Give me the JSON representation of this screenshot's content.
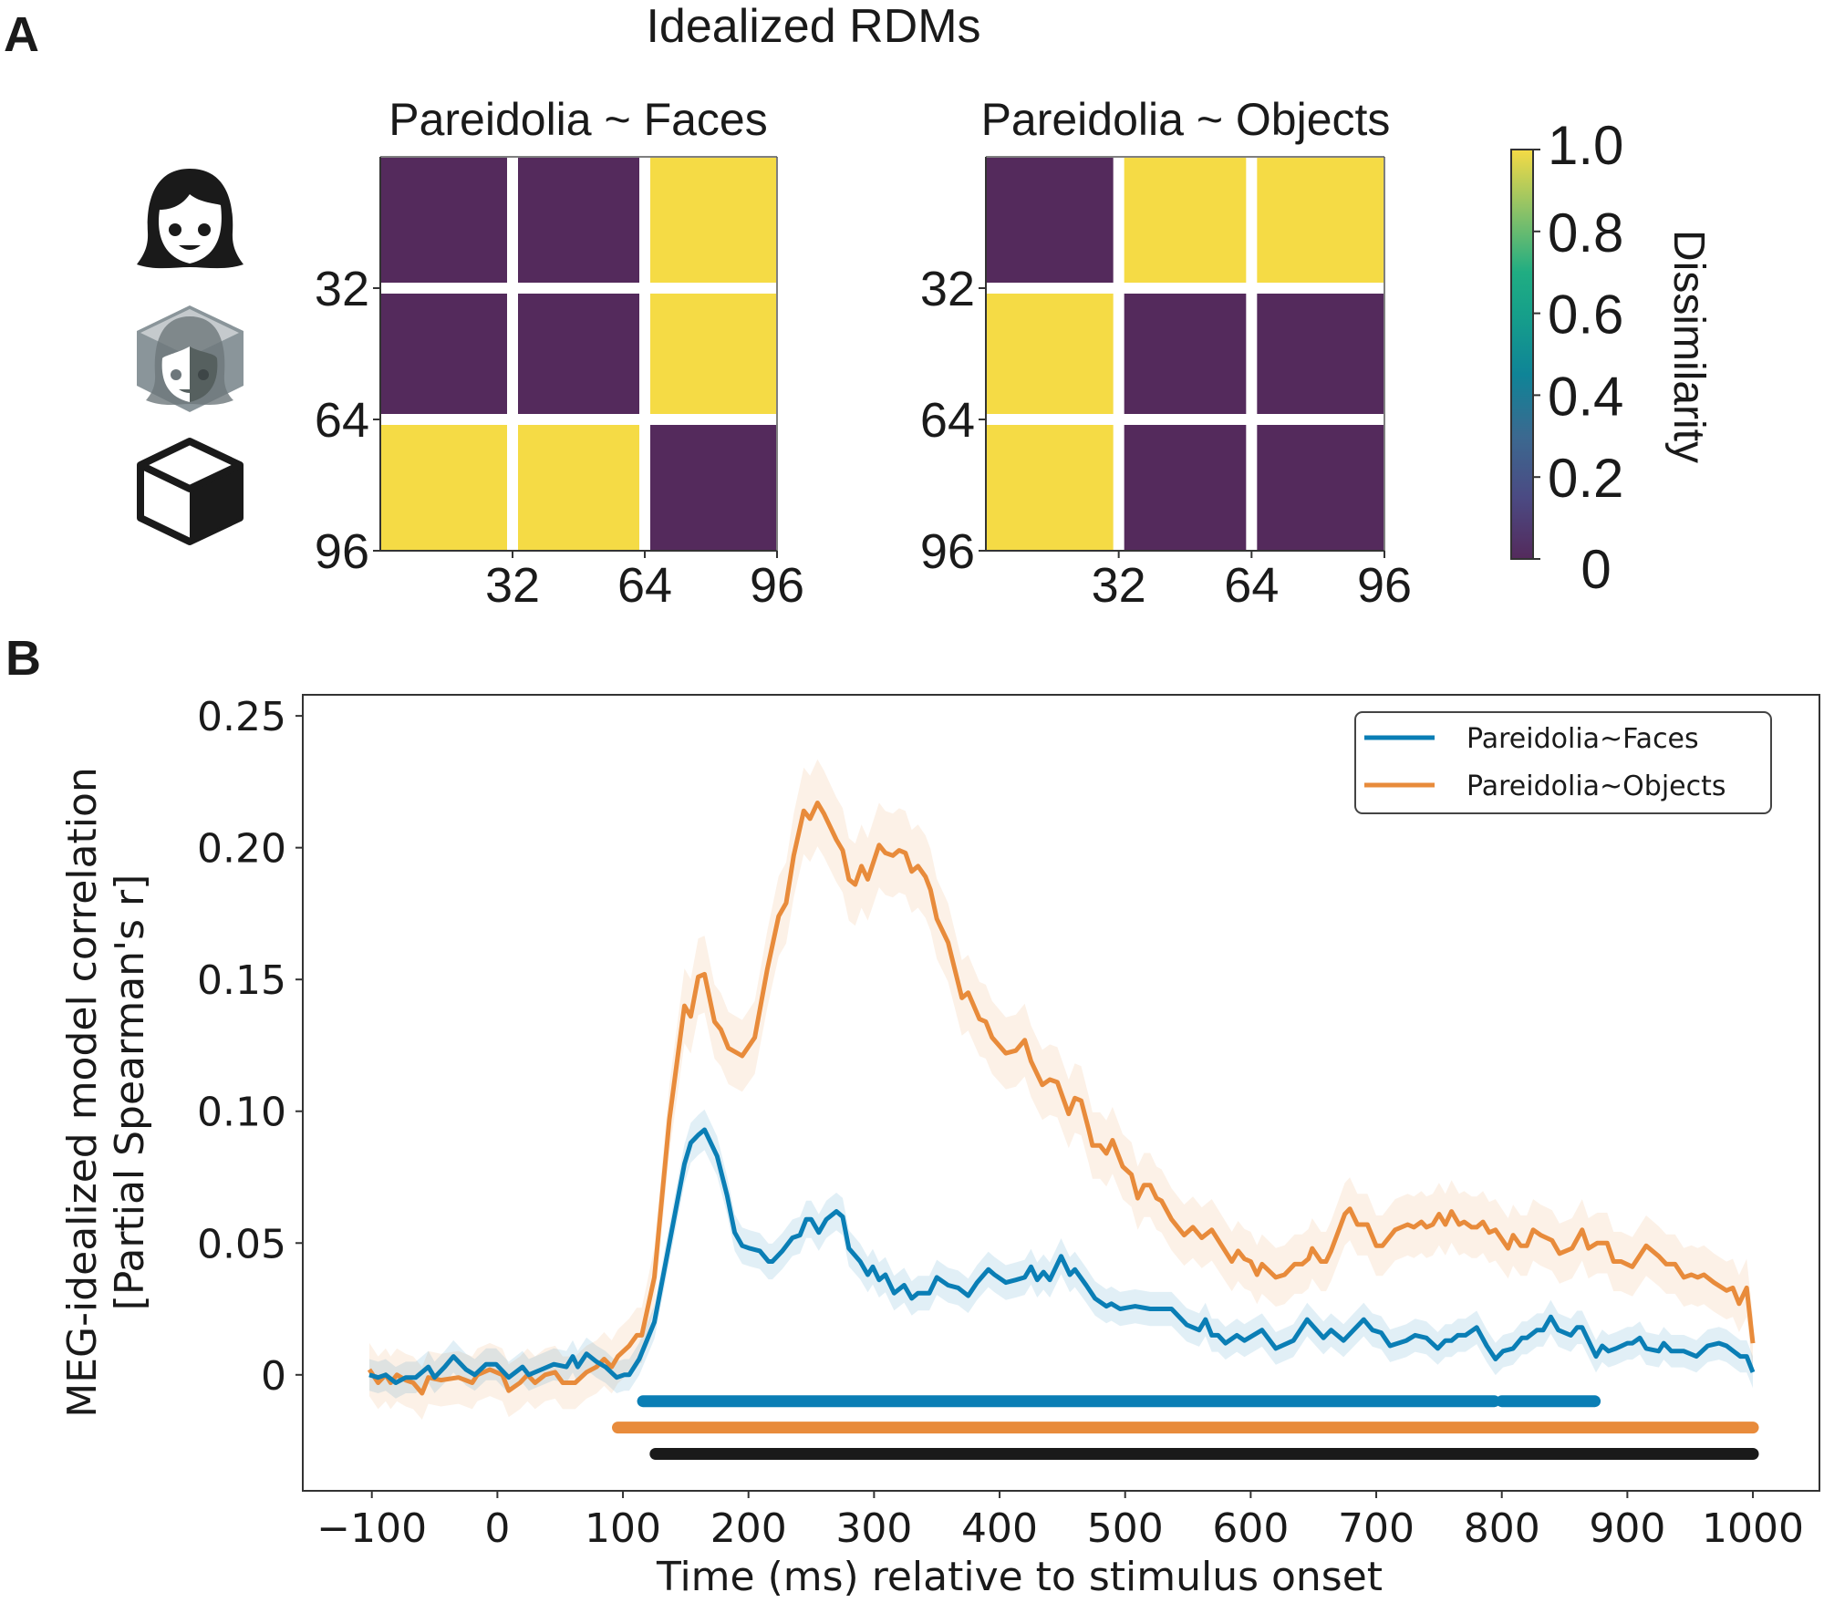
{
  "panel_a": {
    "label": "A",
    "title": "Idealized RDMs",
    "row_icons": [
      "face-icon",
      "pareidolia-icon",
      "object-icon"
    ],
    "colorbar": {
      "label": "Dissimilarity",
      "ticks": [
        "0",
        "0.2",
        "0.4",
        "0.6",
        "0.8",
        "1.0"
      ],
      "colormap": "viridis",
      "colors": {
        "low": "#542a5c",
        "high": "#f5db45"
      }
    }
  },
  "panel_b": {
    "label": "B"
  },
  "chart_data": [
    {
      "type": "heatmap",
      "title": "Pareidolia ~ Faces",
      "ticks": [
        "32",
        "64",
        "96"
      ],
      "range": [
        0,
        96
      ],
      "block_order": [
        "Faces",
        "Pareidolia",
        "Objects"
      ],
      "matrix": [
        [
          0,
          0,
          1
        ],
        [
          0,
          0,
          1
        ],
        [
          1,
          1,
          0
        ]
      ],
      "colorbar_range": [
        0,
        1
      ]
    },
    {
      "type": "heatmap",
      "title": "Pareidolia ~ Objects",
      "ticks": [
        "32",
        "64",
        "96"
      ],
      "range": [
        0,
        96
      ],
      "block_order": [
        "Faces",
        "Pareidolia",
        "Objects"
      ],
      "matrix": [
        [
          0,
          1,
          1
        ],
        [
          1,
          0,
          0
        ],
        [
          1,
          0,
          0
        ]
      ],
      "colorbar_range": [
        0,
        1
      ]
    },
    {
      "type": "line",
      "title": "",
      "xlabel": "Time (ms) relative to stimulus onset",
      "ylabel": "MEG-idealized model correlation\n[Partial Spearman's r]",
      "xlim": [
        -155,
        1053
      ],
      "ylim": [
        -0.044,
        0.258
      ],
      "xticks": [
        -100,
        0,
        100,
        200,
        300,
        400,
        500,
        600,
        700,
        800,
        900,
        1000
      ],
      "xtick_labels": [
        "−100",
        "0",
        "100",
        "200",
        "300",
        "400",
        "500",
        "600",
        "700",
        "800",
        "900",
        "1000"
      ],
      "yticks": [
        0,
        0.05,
        0.1,
        0.15,
        0.2,
        0.25
      ],
      "ytick_labels": [
        "0",
        "0.05",
        "0.10",
        "0.15",
        "0.20",
        "0.25"
      ],
      "grid": false,
      "legend_position": "top-right",
      "series": [
        {
          "name": "Pareidolia~Faces",
          "color": "#0a7eb5",
          "band_color": "#0a7eb5",
          "band_halfwidth": 0.006,
          "x": [
            -102,
            -95,
            -89,
            -81,
            -73,
            -65,
            -55,
            -50,
            -42,
            -35,
            -25,
            -18,
            -9,
            -1,
            9,
            20,
            25,
            35,
            45,
            55,
            60,
            64,
            71,
            79,
            86,
            95,
            101,
            105,
            113,
            125,
            137,
            149,
            154,
            160,
            165,
            175,
            183,
            189,
            195,
            201,
            209,
            216,
            219,
            227,
            235,
            241,
            246,
            250,
            256,
            262,
            270,
            275,
            280,
            289,
            295,
            299,
            304,
            309,
            316,
            324,
            330,
            335,
            344,
            350,
            359,
            367,
            375,
            382,
            391,
            396,
            405,
            413,
            420,
            425,
            430,
            435,
            440,
            449,
            456,
            460,
            469,
            476,
            485,
            489,
            496,
            508,
            520,
            537,
            549,
            559,
            564,
            569,
            574,
            580,
            589,
            595,
            609,
            620,
            634,
            645,
            658,
            664,
            674,
            690,
            697,
            704,
            711,
            724,
            731,
            740,
            749,
            755,
            760,
            765,
            771,
            780,
            788,
            795,
            801,
            809,
            816,
            820,
            828,
            833,
            839,
            845,
            855,
            860,
            864,
            875,
            880,
            885,
            891,
            900,
            904,
            910,
            915,
            925,
            929,
            935,
            945,
            955,
            964,
            973,
            979,
            990,
            995,
            1000
          ],
          "y": [
            0.0,
            -0.001,
            0.0,
            -0.003,
            -0.001,
            -0.001,
            0.003,
            -0.001,
            0.003,
            0.007,
            0.002,
            0.0,
            0.004,
            0.004,
            -0.001,
            0.003,
            0.0,
            0.002,
            0.004,
            0.003,
            0.007,
            0.003,
            0.008,
            0.005,
            0.003,
            -0.001,
            0.0,
            0.0,
            0.006,
            0.02,
            0.05,
            0.08,
            0.088,
            0.091,
            0.093,
            0.083,
            0.068,
            0.054,
            0.049,
            0.048,
            0.047,
            0.043,
            0.043,
            0.047,
            0.052,
            0.053,
            0.059,
            0.059,
            0.054,
            0.059,
            0.062,
            0.06,
            0.048,
            0.043,
            0.038,
            0.041,
            0.036,
            0.038,
            0.031,
            0.034,
            0.029,
            0.031,
            0.031,
            0.037,
            0.034,
            0.033,
            0.03,
            0.035,
            0.04,
            0.038,
            0.035,
            0.036,
            0.037,
            0.041,
            0.036,
            0.039,
            0.036,
            0.045,
            0.038,
            0.04,
            0.034,
            0.029,
            0.026,
            0.027,
            0.025,
            0.026,
            0.025,
            0.025,
            0.019,
            0.017,
            0.021,
            0.015,
            0.015,
            0.012,
            0.015,
            0.013,
            0.017,
            0.01,
            0.013,
            0.021,
            0.014,
            0.017,
            0.013,
            0.021,
            0.017,
            0.016,
            0.011,
            0.013,
            0.015,
            0.014,
            0.01,
            0.013,
            0.013,
            0.015,
            0.015,
            0.018,
            0.011,
            0.006,
            0.009,
            0.01,
            0.014,
            0.014,
            0.017,
            0.017,
            0.022,
            0.017,
            0.015,
            0.018,
            0.018,
            0.007,
            0.011,
            0.009,
            0.01,
            0.012,
            0.012,
            0.014,
            0.01,
            0.009,
            0.012,
            0.009,
            0.009,
            0.007,
            0.011,
            0.012,
            0.011,
            0.007,
            0.007,
            0.001
          ]
        },
        {
          "name": "Pareidolia~Objects",
          "color": "#e88b3b",
          "band_color": "#e88b3b",
          "band_halfwidth": 0.01,
          "x": [
            -102,
            -95,
            -89,
            -85,
            -80,
            -73,
            -67,
            -60,
            -55,
            -45,
            -31,
            -20,
            -16,
            -6,
            4,
            9,
            18,
            24,
            30,
            38,
            46,
            52,
            62,
            71,
            79,
            85,
            91,
            96,
            105,
            111,
            115,
            125,
            137,
            149,
            154,
            160,
            165,
            173,
            178,
            184,
            195,
            205,
            215,
            224,
            230,
            236,
            244,
            249,
            255,
            260,
            270,
            275,
            280,
            285,
            290,
            295,
            304,
            309,
            315,
            320,
            325,
            330,
            335,
            341,
            345,
            350,
            359,
            370,
            375,
            384,
            389,
            394,
            405,
            413,
            420,
            425,
            434,
            440,
            446,
            455,
            460,
            465,
            471,
            474,
            480,
            485,
            490,
            498,
            505,
            510,
            515,
            520,
            525,
            529,
            537,
            547,
            554,
            561,
            569,
            577,
            585,
            590,
            595,
            600,
            605,
            609,
            620,
            627,
            635,
            641,
            646,
            649,
            656,
            660,
            664,
            675,
            679,
            685,
            693,
            700,
            705,
            715,
            725,
            730,
            736,
            740,
            745,
            750,
            755,
            760,
            766,
            770,
            776,
            780,
            785,
            790,
            795,
            805,
            809,
            815,
            820,
            825,
            831,
            840,
            846,
            856,
            864,
            869,
            876,
            884,
            889,
            895,
            904,
            915,
            925,
            931,
            938,
            945,
            951,
            956,
            961,
            969,
            979,
            984,
            989,
            995,
            1000
          ],
          "y": [
            0.002,
            -0.003,
            0.0,
            -0.003,
            0.0,
            -0.002,
            -0.003,
            -0.007,
            -0.001,
            -0.002,
            -0.001,
            -0.003,
            0.0,
            0.002,
            0.0,
            -0.006,
            -0.003,
            0.0,
            -0.003,
            0.0,
            0.001,
            -0.003,
            -0.003,
            0.001,
            0.003,
            0.006,
            0.003,
            0.007,
            0.011,
            0.015,
            0.015,
            0.037,
            0.097,
            0.14,
            0.136,
            0.151,
            0.152,
            0.134,
            0.131,
            0.124,
            0.121,
            0.128,
            0.154,
            0.174,
            0.179,
            0.197,
            0.214,
            0.211,
            0.217,
            0.213,
            0.203,
            0.199,
            0.188,
            0.186,
            0.193,
            0.188,
            0.201,
            0.198,
            0.197,
            0.199,
            0.198,
            0.191,
            0.193,
            0.189,
            0.184,
            0.173,
            0.164,
            0.143,
            0.145,
            0.135,
            0.134,
            0.128,
            0.122,
            0.123,
            0.127,
            0.119,
            0.11,
            0.112,
            0.111,
            0.099,
            0.105,
            0.104,
            0.093,
            0.087,
            0.087,
            0.084,
            0.089,
            0.079,
            0.076,
            0.067,
            0.072,
            0.072,
            0.067,
            0.066,
            0.059,
            0.053,
            0.056,
            0.052,
            0.055,
            0.049,
            0.043,
            0.047,
            0.044,
            0.043,
            0.038,
            0.042,
            0.037,
            0.038,
            0.042,
            0.042,
            0.044,
            0.048,
            0.043,
            0.043,
            0.047,
            0.061,
            0.063,
            0.057,
            0.057,
            0.049,
            0.049,
            0.055,
            0.057,
            0.056,
            0.058,
            0.056,
            0.057,
            0.061,
            0.057,
            0.062,
            0.057,
            0.058,
            0.056,
            0.056,
            0.058,
            0.054,
            0.055,
            0.048,
            0.053,
            0.049,
            0.049,
            0.055,
            0.053,
            0.051,
            0.046,
            0.048,
            0.055,
            0.048,
            0.05,
            0.05,
            0.043,
            0.043,
            0.041,
            0.049,
            0.045,
            0.042,
            0.042,
            0.037,
            0.038,
            0.037,
            0.038,
            0.035,
            0.032,
            0.033,
            0.027,
            0.033,
            0.012
          ]
        }
      ],
      "significance_bars": [
        {
          "name": "Pareidolia~Faces significant",
          "color": "#0a7eb5",
          "y": -0.01,
          "segments": [
            [
              116,
              794
            ],
            [
              800,
              874
            ]
          ]
        },
        {
          "name": "Pareidolia~Objects significant",
          "color": "#e88b3b",
          "y": -0.02,
          "segments": [
            [
              96,
              1000
            ]
          ]
        },
        {
          "name": "Difference significant",
          "color": "#1a1a1a",
          "y": -0.03,
          "segments": [
            [
              126,
              1000
            ]
          ]
        }
      ]
    }
  ]
}
